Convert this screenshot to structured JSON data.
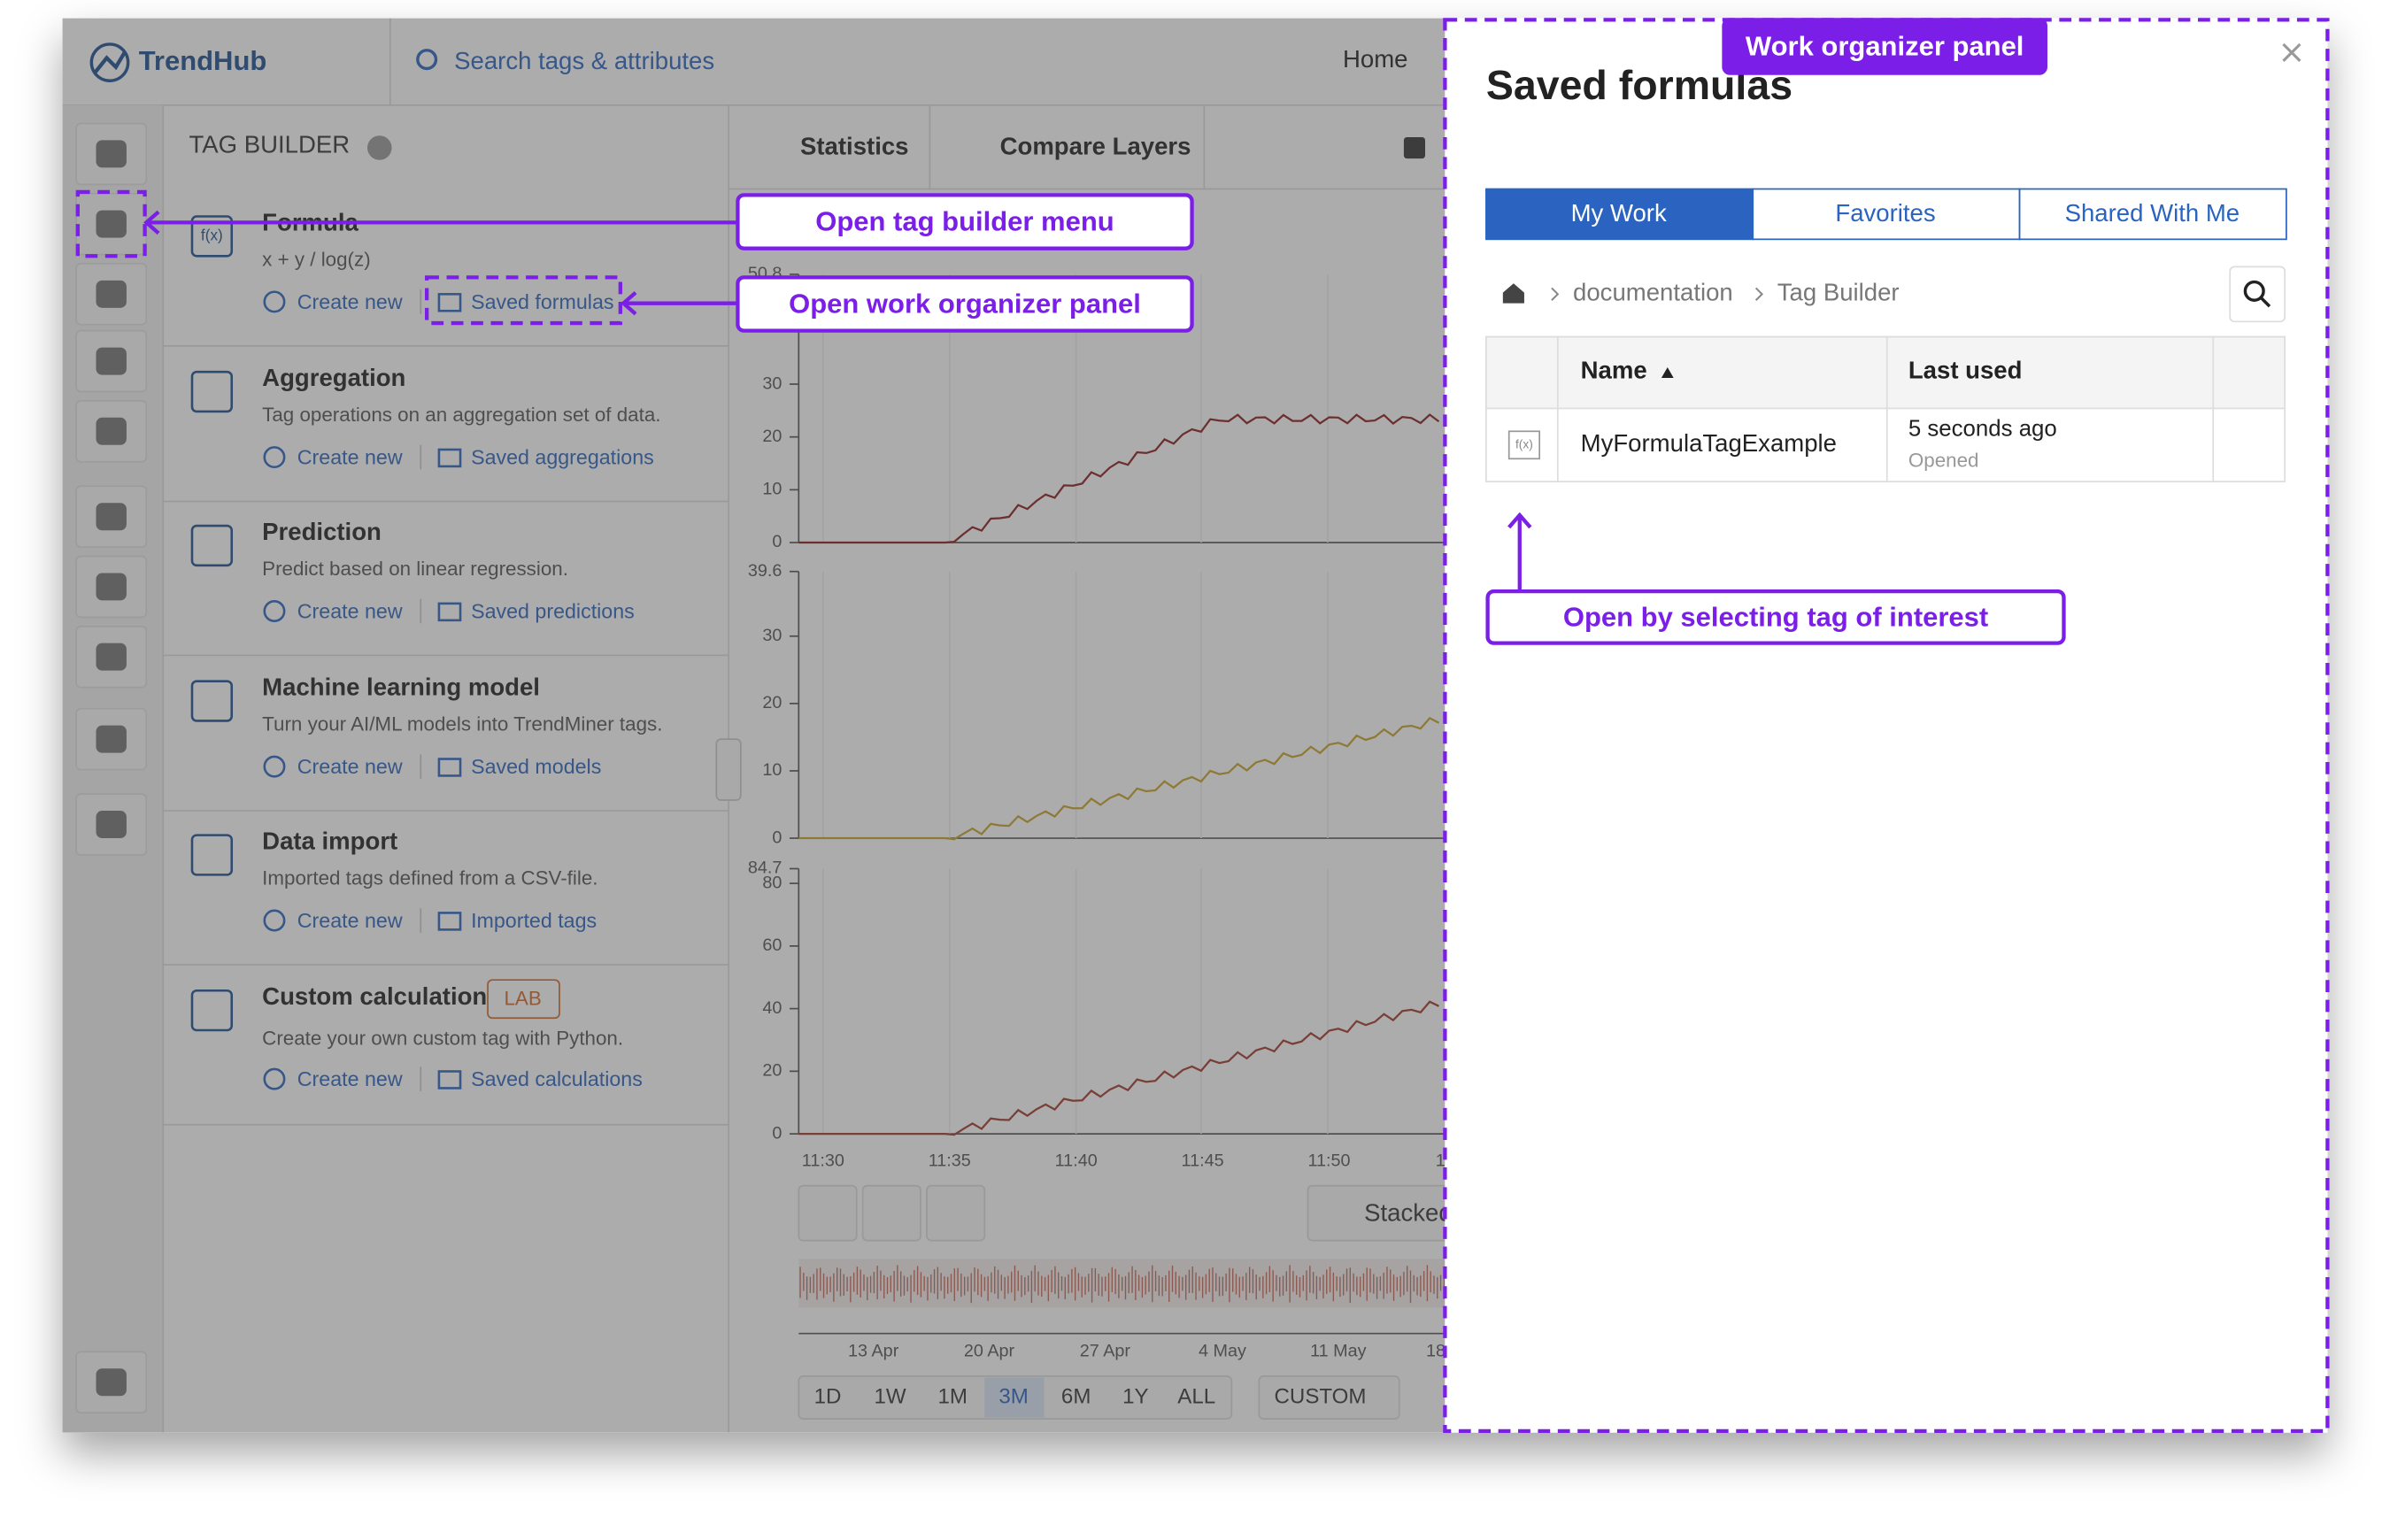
{
  "app": {
    "logo": "TrendHub",
    "search": "Search tags & attributes",
    "nav": "Home"
  },
  "tag_builder": {
    "title": "TAG BUILDER",
    "formula_icon": "f(x)",
    "items": [
      {
        "title": "Formula",
        "description": "x + y / log(z)",
        "create": "Create new",
        "saved": "Saved formulas"
      },
      {
        "title": "Aggregation",
        "description": "Tag operations on an aggregation set of data.",
        "create": "Create new",
        "saved": "Saved aggregations"
      },
      {
        "title": "Prediction",
        "description": "Predict based on linear regression.",
        "create": "Create new",
        "saved": "Saved predictions"
      },
      {
        "title": "Machine learning model",
        "description": "Turn your AI/ML models into TrendMiner tags.",
        "create": "Create new",
        "saved": "Saved models"
      },
      {
        "title": "Data import",
        "description": "Imported tags defined from a CSV-file.",
        "create": "Create new",
        "saved": "Imported tags"
      },
      {
        "title": "Custom calculation",
        "badge": "LAB",
        "description": "Create your own custom tag with Python.",
        "create": "Create new",
        "saved": "Saved calculations"
      }
    ]
  },
  "chart_toolbar": {
    "tabs": [
      "Statistics",
      "Compare Layers"
    ]
  },
  "charts": [
    {
      "yticks": [
        50.8,
        30,
        20,
        10,
        0
      ]
    },
    {
      "yticks": [
        39.6,
        30,
        20,
        10,
        0
      ]
    },
    {
      "yticks": [
        84.7,
        80,
        60,
        40,
        20,
        0
      ]
    }
  ],
  "xticks": [
    "11:30",
    "11:35",
    "11:40",
    "11:45",
    "11:50",
    "1"
  ],
  "layout_button": "Stacked",
  "navigator_dates": [
    "13 Apr",
    "20 Apr",
    "27 Apr",
    "4 May",
    "11 May",
    "18"
  ],
  "ranges": [
    "1D",
    "1W",
    "1M",
    "3M",
    "6M",
    "1Y",
    "ALL"
  ],
  "active_range": 3,
  "custom_range": "CUSTOM",
  "panel": {
    "title": "Saved formulas",
    "tabs": [
      "My Work",
      "Favorites",
      "Shared With Me"
    ],
    "breadcrumb": [
      "documentation",
      "Tag Builder"
    ],
    "columns": [
      "Name",
      "Last used"
    ],
    "rows": [
      {
        "name": "MyFormulaTagExample",
        "last_used": "5 seconds ago",
        "status": "Opened"
      }
    ]
  },
  "annotations": {
    "panel": "Work organizer panel",
    "menu": "Open tag builder menu",
    "organizer": "Open work organizer panel",
    "select": "Open by selecting tag of interest"
  }
}
